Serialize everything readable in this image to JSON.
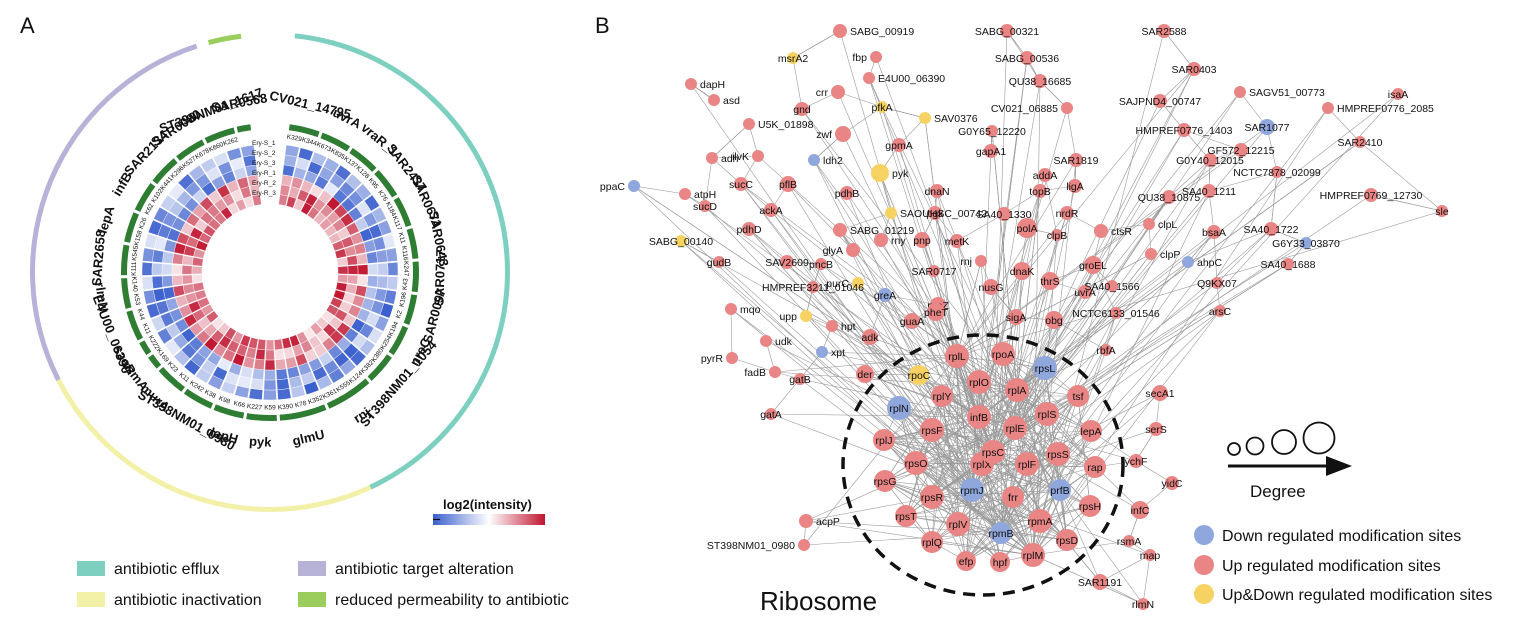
{
  "panels": {
    "a": "A",
    "b": "B"
  },
  "circos": {
    "samples": [
      "Ery-S_1",
      "Ery-S_2",
      "Ery-S_3",
      "Ery-R_1",
      "Ery-R_2",
      "Ery-R_3"
    ],
    "colorbar_title": "log2(intensity)",
    "colors": {
      "efflux": "#7dcfbf",
      "inactivation": "#f3f0a8",
      "target": "#b7b3d8",
      "permeability": "#9acd5c",
      "ring": "#2e7d32",
      "low": "#3a5fcd",
      "mid": "#ffffff",
      "high": "#c0152f"
    },
    "sectors": [
      {
        "gene": "CV021_14795",
        "ticks": [
          "K329",
          "K344"
        ]
      },
      {
        "gene": "uvrA",
        "ticks": [
          "K673",
          "K835"
        ]
      },
      {
        "gene": "vraR_1",
        "ticks": [
          "K137",
          "K128"
        ]
      },
      {
        "gene": "SAR2437",
        "ticks": [
          "K95",
          "K76"
        ]
      },
      {
        "gene": "SAR0671",
        "ticks": [
          "K184",
          "K117"
        ]
      },
      {
        "gene": "SAR0643",
        "ticks": [
          "K11",
          "K116"
        ]
      },
      {
        "gene": "SAR0717",
        "ticks": [
          "K247",
          "K43"
        ]
      },
      {
        "gene": "SAR0097",
        "ticks": [
          "K196",
          "K2"
        ]
      },
      {
        "gene": "nreC",
        "ticks": [
          "K194",
          "K254"
        ]
      },
      {
        "gene": "ST398NM01_1054",
        "ticks": [
          "K380",
          "K382"
        ]
      },
      {
        "gene": "rnj",
        "ticks": [
          "K124",
          "K555",
          "K361"
        ]
      },
      {
        "gene": "glmU",
        "ticks": [
          "K352",
          "K78",
          "K390"
        ]
      },
      {
        "gene": "pyk",
        "ticks": [
          "K59",
          "K227"
        ]
      },
      {
        "gene": "dapH",
        "ticks": [
          "K66",
          "K98"
        ]
      },
      {
        "gene": "ST398NM01_0980",
        "ticks": [
          "K38",
          "K242"
        ]
      },
      {
        "gene": "murA",
        "ticks": [
          "K11",
          "K23"
        ]
      },
      {
        "gene": "rsmA",
        "ticks": [
          "K169"
        ]
      },
      {
        "gene": "saeR",
        "ticks": [
          "K222"
        ]
      },
      {
        "gene": "E4U00_06390",
        "ticks": [
          "K11",
          "K44"
        ]
      },
      {
        "gene": "rlmN",
        "ticks": [
          "K53",
          "K140"
        ]
      },
      {
        "gene": "SAR2658",
        "ticks": [
          "K111",
          "K545"
        ]
      },
      {
        "gene": "lepA",
        "ticks": [
          "K158",
          "K26"
        ]
      },
      {
        "gene": "infB",
        "ticks": [
          "K62",
          "K102"
        ]
      },
      {
        "gene": "SAR2134",
        "ticks": [
          "K441",
          "K296"
        ]
      },
      {
        "gene": "SAR0080",
        "ticks": [
          "K527",
          "K678"
        ]
      },
      {
        "gene": "ST398NM01_1617",
        "ticks": [
          "K660",
          "K262"
        ]
      },
      {
        "gene": "SAR0568",
        "ticks": []
      }
    ],
    "legend": [
      {
        "label": "antibiotic efflux",
        "color": "#7dcfbf"
      },
      {
        "label": "antibiotic target alteration",
        "color": "#b7b3d8"
      },
      {
        "label": "antibiotic inactivation",
        "color": "#f3f0a8"
      },
      {
        "label": "reduced permeability to antibiotic",
        "color": "#9acd5c"
      }
    ]
  },
  "network": {
    "colors": {
      "down": "#8fa7dc",
      "up": "#ea8585",
      "updown": "#f6d263",
      "edge": "#9a9a9a"
    },
    "cluster_label": "Ribosome",
    "degree_label": "Degree",
    "legend": [
      {
        "label": "Down regulated modification sites",
        "type": "down"
      },
      {
        "label": "Up regulated modification sites",
        "type": "up"
      },
      {
        "label": "Up&Down regulated modification sites",
        "type": "updown"
      }
    ],
    "nodes": [
      {
        "label": "SABG_00919",
        "type": "up"
      },
      {
        "label": "fbp",
        "type": "up"
      },
      {
        "label": "msrA2",
        "type": "updown"
      },
      {
        "label": "crr",
        "type": "up"
      },
      {
        "label": "dapH",
        "type": "up"
      },
      {
        "label": "asd",
        "type": "up"
      },
      {
        "label": "gnd",
        "type": "up"
      },
      {
        "label": "E4U00_06390",
        "type": "up"
      },
      {
        "label": "pfkA",
        "type": "updown"
      },
      {
        "label": "SAV0376",
        "type": "updown"
      },
      {
        "label": "U5K_01898",
        "type": "up"
      },
      {
        "label": "zwf",
        "type": "up"
      },
      {
        "label": "gpmA",
        "type": "up"
      },
      {
        "label": "ilvK",
        "type": "up"
      },
      {
        "label": "ldh2",
        "type": "down"
      },
      {
        "label": "adh",
        "type": "up"
      },
      {
        "label": "pflB",
        "type": "up"
      },
      {
        "label": "pyk",
        "type": "updown"
      },
      {
        "label": "pdhB",
        "type": "up"
      },
      {
        "label": "dnaN",
        "type": "up"
      },
      {
        "label": "pgk",
        "type": "up"
      },
      {
        "label": "ppaC",
        "type": "down"
      },
      {
        "label": "atpH",
        "type": "up"
      },
      {
        "label": "sucC",
        "type": "up"
      },
      {
        "label": "ackA",
        "type": "up"
      },
      {
        "label": "sucD",
        "type": "up"
      },
      {
        "label": "pdhD",
        "type": "up"
      },
      {
        "label": "SABG_01219",
        "type": "up"
      },
      {
        "label": "SAOUHSC_00742",
        "type": "updown"
      },
      {
        "label": "SABG_00140",
        "type": "updown"
      },
      {
        "label": "gudB",
        "type": "up"
      },
      {
        "label": "SAV2609",
        "type": "up"
      },
      {
        "label": "pncB",
        "type": "up"
      },
      {
        "label": "glyA",
        "type": "up"
      },
      {
        "label": "rny",
        "type": "up"
      },
      {
        "label": "pnp",
        "type": "up"
      },
      {
        "label": "metK",
        "type": "up"
      },
      {
        "label": "rnj",
        "type": "up"
      },
      {
        "label": "SAR0717",
        "type": "up"
      },
      {
        "label": "purC",
        "type": "updown"
      },
      {
        "label": "HMPREF3211_01046",
        "type": "up"
      },
      {
        "label": "greA",
        "type": "down"
      },
      {
        "label": "rpoZ",
        "type": "up"
      },
      {
        "label": "nusG",
        "type": "up"
      },
      {
        "label": "mqo",
        "type": "up"
      },
      {
        "label": "upp",
        "type": "updown"
      },
      {
        "label": "hpt",
        "type": "up"
      },
      {
        "label": "udk",
        "type": "up"
      },
      {
        "label": "xpt",
        "type": "down"
      },
      {
        "label": "pyrR",
        "type": "up"
      },
      {
        "label": "adk",
        "type": "up"
      },
      {
        "label": "guaA",
        "type": "up"
      },
      {
        "label": "pheT",
        "type": "up"
      },
      {
        "label": "sigA",
        "type": "up"
      },
      {
        "label": "fadB",
        "type": "up"
      },
      {
        "label": "gatB",
        "type": "up"
      },
      {
        "label": "der",
        "type": "up"
      },
      {
        "label": "rpoC",
        "type": "updown"
      },
      {
        "label": "gatA",
        "type": "up"
      },
      {
        "label": "acpP",
        "type": "up"
      },
      {
        "label": "ST398NM01_0980",
        "type": "up"
      },
      {
        "label": "SABG_00321",
        "type": "up"
      },
      {
        "label": "SABG_00536",
        "type": "up"
      },
      {
        "label": "QU38_16685",
        "type": "up"
      },
      {
        "label": "CV021_06885",
        "type": "up"
      },
      {
        "label": "G0Y65_12220",
        "type": "up"
      },
      {
        "label": "gapA1",
        "type": "up"
      },
      {
        "label": "addA",
        "type": "up"
      },
      {
        "label": "topB",
        "type": "up"
      },
      {
        "label": "SAR1819",
        "type": "up"
      },
      {
        "label": "ligA",
        "type": "up"
      },
      {
        "label": "SA40_1330",
        "type": "up"
      },
      {
        "label": "nrdR",
        "type": "up"
      },
      {
        "label": "polA",
        "type": "up"
      },
      {
        "label": "clpB",
        "type": "up"
      },
      {
        "label": "ctsR",
        "type": "up"
      },
      {
        "label": "clpL",
        "type": "up"
      },
      {
        "label": "clpP",
        "type": "up"
      },
      {
        "label": "dnaK",
        "type": "up"
      },
      {
        "label": "groEL",
        "type": "up"
      },
      {
        "label": "thrS",
        "type": "up"
      },
      {
        "label": "uvrA",
        "type": "up"
      },
      {
        "label": "obg",
        "type": "up"
      },
      {
        "label": "SA40_1566",
        "type": "up"
      },
      {
        "label": "NCTC6133_01546",
        "type": "up"
      },
      {
        "label": "rbfA",
        "type": "up"
      },
      {
        "label": "SAR2588",
        "type": "up"
      },
      {
        "label": "SAR0403",
        "type": "up"
      },
      {
        "label": "SAGV51_00773",
        "type": "up"
      },
      {
        "label": "SAJPND4_00747",
        "type": "up"
      },
      {
        "label": "HMPREF0776_2085",
        "type": "up"
      },
      {
        "label": "HMPREF0776_1403",
        "type": "up"
      },
      {
        "label": "SAR1077",
        "type": "down"
      },
      {
        "label": "G0Y40_12015",
        "type": "up"
      },
      {
        "label": "GF572_12215",
        "type": "up"
      },
      {
        "label": "SAR2410",
        "type": "up"
      },
      {
        "label": "isaA",
        "type": "up"
      },
      {
        "label": "NCTC7878_02099",
        "type": "up"
      },
      {
        "label": "SA40_1211",
        "type": "up"
      },
      {
        "label": "QU38_10875",
        "type": "up"
      },
      {
        "label": "HMPREF0769_12730",
        "type": "up"
      },
      {
        "label": "sle",
        "type": "up"
      },
      {
        "label": "SA40_1722",
        "type": "up"
      },
      {
        "label": "bsaA",
        "type": "up"
      },
      {
        "label": "ahpC",
        "type": "down"
      },
      {
        "label": "G6Y33_03870",
        "type": "down"
      },
      {
        "label": "SA40_1688",
        "type": "up"
      },
      {
        "label": "Q9KX07",
        "type": "up"
      },
      {
        "label": "arsC",
        "type": "up"
      },
      {
        "label": "secA1",
        "type": "up"
      },
      {
        "label": "serS",
        "type": "up"
      },
      {
        "label": "ychF",
        "type": "up"
      },
      {
        "label": "yidC",
        "type": "up"
      },
      {
        "label": "infC",
        "type": "up"
      },
      {
        "label": "rsmA",
        "type": "up"
      },
      {
        "label": "map",
        "type": "up"
      },
      {
        "label": "SAR1191",
        "type": "up"
      },
      {
        "label": "rlmN",
        "type": "up"
      },
      {
        "label": "rplL",
        "type": "up"
      },
      {
        "label": "rpoA",
        "type": "up"
      },
      {
        "label": "rpsL",
        "type": "down"
      },
      {
        "label": "rplO",
        "type": "up"
      },
      {
        "label": "rplA",
        "type": "up"
      },
      {
        "label": "rplN",
        "type": "down"
      },
      {
        "label": "rplY",
        "type": "up"
      },
      {
        "label": "infB",
        "type": "up"
      },
      {
        "label": "rplS",
        "type": "up"
      },
      {
        "label": "tsf",
        "type": "up"
      },
      {
        "label": "rplJ",
        "type": "up"
      },
      {
        "label": "rpsF",
        "type": "up"
      },
      {
        "label": "rplE",
        "type": "up"
      },
      {
        "label": "lepA",
        "type": "up"
      },
      {
        "label": "rpsO",
        "type": "up"
      },
      {
        "label": "rplX",
        "type": "up"
      },
      {
        "label": "rpsC",
        "type": "up"
      },
      {
        "label": "rplF",
        "type": "up"
      },
      {
        "label": "rpsS",
        "type": "up"
      },
      {
        "label": "rap",
        "type": "up"
      },
      {
        "label": "rpsG",
        "type": "up"
      },
      {
        "label": "rpsR",
        "type": "up"
      },
      {
        "label": "rpmJ",
        "type": "down"
      },
      {
        "label": "frr",
        "type": "up"
      },
      {
        "label": "prfB",
        "type": "down"
      },
      {
        "label": "rpsT",
        "type": "up"
      },
      {
        "label": "rplV",
        "type": "up"
      },
      {
        "label": "rpmB",
        "type": "down"
      },
      {
        "label": "rpmA",
        "type": "up"
      },
      {
        "label": "rpsH",
        "type": "up"
      },
      {
        "label": "rplQ",
        "type": "up"
      },
      {
        "label": "efp",
        "type": "up"
      },
      {
        "label": "hpf",
        "type": "up"
      },
      {
        "label": "rplM",
        "type": "up"
      },
      {
        "label": "rpsD",
        "type": "up"
      }
    ]
  }
}
